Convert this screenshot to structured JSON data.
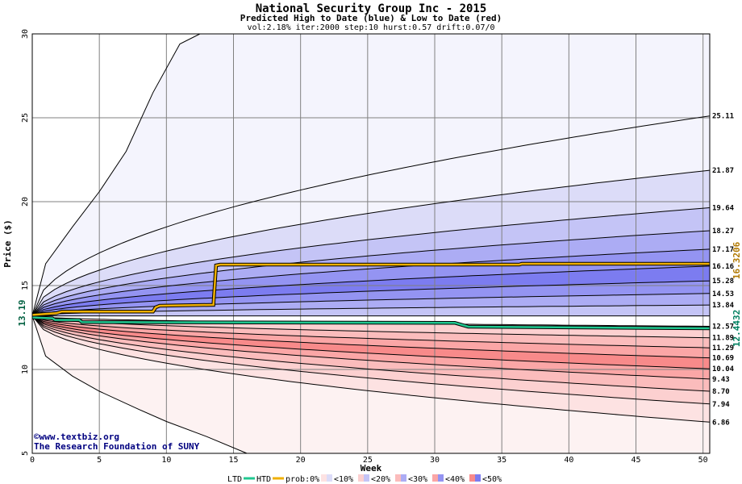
{
  "chart_data": {
    "type": "area",
    "title": "National Security Group Inc - 2015",
    "subtitle": "Predicted High to Date (blue) &  Low to Date (red)",
    "params": "vol:2.18% iter:2000 step:10 hurst:0.57 drift:0.07/0",
    "xlabel": "Week",
    "ylabel": "Price ($)",
    "xlim": [
      0,
      50.5
    ],
    "ylim": [
      5,
      30
    ],
    "xticks": [
      0,
      5,
      10,
      15,
      20,
      25,
      30,
      35,
      40,
      45,
      50
    ],
    "yticks": [
      5,
      10,
      15,
      20,
      25,
      30
    ],
    "grid": true,
    "start_price": 13.19,
    "start_label": "13.19",
    "high_to_date_final": "16.3206",
    "low_to_date_final": "12.4432",
    "blue_bands": [
      {
        "final": 25.11,
        "label": "25.11",
        "level": 1
      },
      {
        "final": 21.87,
        "label": "21.87",
        "level": 2
      },
      {
        "final": 19.64,
        "label": "19.64",
        "level": 3
      },
      {
        "final": 18.27,
        "label": "18.27",
        "level": 4
      },
      {
        "final": 17.17,
        "label": "17.17",
        "level": 5
      },
      {
        "final": 16.16,
        "label": "16.16",
        "level": 6
      },
      {
        "final": 15.28,
        "label": "15.28",
        "level": 5
      },
      {
        "final": 14.53,
        "label": "14.53",
        "level": 4
      },
      {
        "final": 13.84,
        "label": "13.84",
        "level": 3
      }
    ],
    "red_bands": [
      {
        "final": 12.57,
        "label": "12.57",
        "level": 3
      },
      {
        "final": 11.89,
        "label": "11.89",
        "level": 3
      },
      {
        "final": 11.29,
        "label": "11.29",
        "level": 4
      },
      {
        "final": 10.69,
        "label": "10.69",
        "level": 5
      },
      {
        "final": 10.04,
        "label": "10.04",
        "level": 6
      },
      {
        "final": 9.43,
        "label": "9.43",
        "level": 5
      },
      {
        "final": 8.7,
        "label": "8.70",
        "level": 4
      },
      {
        "final": 7.94,
        "label": "7.94",
        "level": 3
      },
      {
        "final": 6.86,
        "label": "6.86",
        "level": 2
      }
    ],
    "outer_high": [
      [
        0,
        13.19
      ],
      [
        1,
        16.3
      ],
      [
        3,
        18.5
      ],
      [
        5,
        20.6
      ],
      [
        7,
        23.0
      ],
      [
        9,
        26.5
      ],
      [
        11,
        29.4
      ],
      [
        12.5,
        30
      ]
    ],
    "outer_low": [
      [
        0,
        13.19
      ],
      [
        1,
        10.8
      ],
      [
        3,
        9.6
      ],
      [
        5,
        8.7
      ],
      [
        8,
        7.6
      ],
      [
        10,
        6.9
      ],
      [
        13,
        6.0
      ],
      [
        16,
        5.0
      ]
    ],
    "htd_line": [
      [
        0,
        13.25
      ],
      [
        1.8,
        13.35
      ],
      [
        2.2,
        13.45
      ],
      [
        9,
        13.45
      ],
      [
        9.2,
        13.7
      ],
      [
        9.5,
        13.8
      ],
      [
        13.5,
        13.85
      ],
      [
        13.7,
        16.2
      ],
      [
        14,
        16.25
      ],
      [
        36.3,
        16.25
      ],
      [
        36.5,
        16.3
      ],
      [
        50.5,
        16.3
      ]
    ],
    "ltd_line": [
      [
        0,
        13.1
      ],
      [
        1.5,
        13.05
      ],
      [
        1.7,
        12.95
      ],
      [
        3.5,
        12.95
      ],
      [
        3.7,
        12.82
      ],
      [
        31.5,
        12.78
      ],
      [
        32.5,
        12.55
      ],
      [
        50.5,
        12.45
      ]
    ],
    "legend": {
      "ltd": "LTD",
      "htd": "HTD",
      "prob": "prob:0%",
      "items": [
        "<10%",
        "<20%",
        "<30%",
        "<40%",
        "<50%"
      ]
    },
    "credit": [
      "©www.textbiz.org",
      "The Research Foundation of SUNY"
    ],
    "colors": {
      "htd": "#f0b000",
      "ltd": "#20c890",
      "grid": "#808080",
      "blue_levels": [
        "#ffffff",
        "#f4f4fd",
        "#dcdcf8",
        "#c4c4f6",
        "#acacf4",
        "#9494f2",
        "#7c7cf0"
      ],
      "red_levels": [
        "#ffffff",
        "#fdf2f2",
        "#fde2e2",
        "#fcd0d0",
        "#fbbcbc",
        "#fba6a6",
        "#f88a8a"
      ]
    }
  }
}
